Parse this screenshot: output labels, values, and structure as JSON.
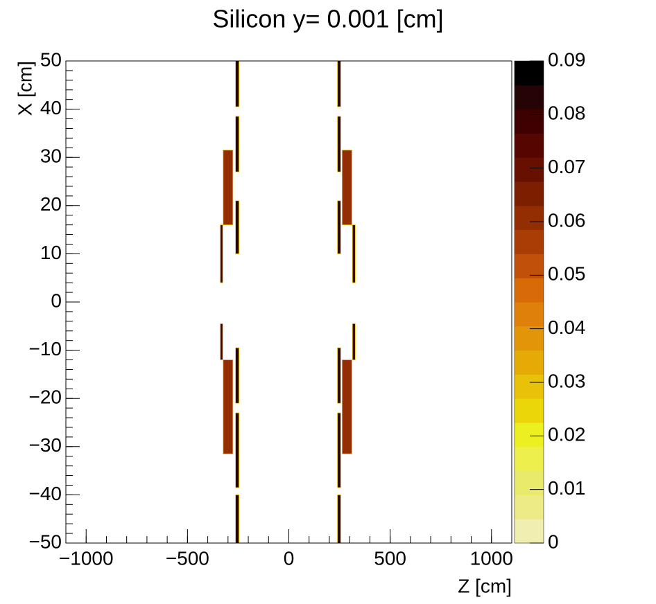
{
  "chart_data": {
    "type": "heatmap",
    "title": "Silicon y=  0.001 [cm]",
    "xlabel": "Z [cm]",
    "ylabel": "X [cm]",
    "xlim": [
      -1100,
      1100
    ],
    "ylim": [
      -50,
      50
    ],
    "xticks": [
      {
        "value": -1000,
        "label": "−1000"
      },
      {
        "value": -500,
        "label": "−500"
      },
      0,
      500,
      1000
    ],
    "yticks": [
      {
        "value": -50,
        "label": "−50"
      },
      {
        "value": -40,
        "label": "−40"
      },
      {
        "value": -30,
        "label": "−30"
      },
      {
        "value": -20,
        "label": "−20"
      },
      {
        "value": -10,
        "label": "−10"
      },
      0,
      10,
      20,
      30,
      40,
      50
    ],
    "zlim": [
      0,
      0.09
    ],
    "zticks": [
      0,
      0.01,
      0.02,
      0.03,
      0.04,
      0.05,
      0.06,
      0.07,
      0.08,
      0.09
    ],
    "palette": [
      "#f0eeb0",
      "#eceb86",
      "#e9ea6c",
      "#ecef4c",
      "#ecf020",
      "#ebd60a",
      "#e8c208",
      "#e6aa06",
      "#e29508",
      "#de800a",
      "#d86a08",
      "#c0500a",
      "#a83e06",
      "#922e02",
      "#7c1e00",
      "#681000",
      "#560600",
      "#3e0000",
      "#240404",
      "#000000"
    ],
    "cells": [
      {
        "z": [
          -263,
          -246
        ],
        "x": [
          40.5,
          50
        ],
        "value": 0.085
      },
      {
        "z": [
          -263,
          -246
        ],
        "x": [
          27,
          38.5
        ],
        "value": 0.085
      },
      {
        "z": [
          -263,
          -246
        ],
        "x": [
          10,
          21
        ],
        "value": 0.085
      },
      {
        "z": [
          -263,
          -246
        ],
        "x": [
          -21,
          -9.5
        ],
        "value": 0.085
      },
      {
        "z": [
          -263,
          -246
        ],
        "x": [
          -38.5,
          -23
        ],
        "value": 0.085
      },
      {
        "z": [
          -263,
          -246
        ],
        "x": [
          -50,
          -40
        ],
        "value": 0.085
      },
      {
        "z": [
          -324,
          -276
        ],
        "x": [
          16,
          31.5
        ],
        "value": 0.06
      },
      {
        "z": [
          -324,
          -276
        ],
        "x": [
          -31.5,
          -12
        ],
        "value": 0.06
      },
      {
        "z": [
          -338,
          -326
        ],
        "x": [
          4,
          16
        ],
        "value": 0.08
      },
      {
        "z": [
          -338,
          -326
        ],
        "x": [
          -12,
          -4.5
        ],
        "value": 0.08
      },
      {
        "z": [
          240,
          256
        ],
        "x": [
          40.5,
          50
        ],
        "value": 0.085
      },
      {
        "z": [
          240,
          256
        ],
        "x": [
          27,
          38.5
        ],
        "value": 0.085
      },
      {
        "z": [
          240,
          256
        ],
        "x": [
          10,
          21
        ],
        "value": 0.085
      },
      {
        "z": [
          240,
          256
        ],
        "x": [
          -21,
          -9.5
        ],
        "value": 0.085
      },
      {
        "z": [
          240,
          256
        ],
        "x": [
          -38.5,
          -23
        ],
        "value": 0.085
      },
      {
        "z": [
          240,
          256
        ],
        "x": [
          -50,
          -40
        ],
        "value": 0.085
      },
      {
        "z": [
          263,
          311
        ],
        "x": [
          16,
          31.5
        ],
        "value": 0.06
      },
      {
        "z": [
          263,
          311
        ],
        "x": [
          -31.5,
          -12
        ],
        "value": 0.06
      },
      {
        "z": [
          314,
          328
        ],
        "x": [
          4,
          16
        ],
        "value": 0.08
      },
      {
        "z": [
          314,
          328
        ],
        "x": [
          -12,
          -4.5
        ],
        "value": 0.08
      }
    ]
  }
}
